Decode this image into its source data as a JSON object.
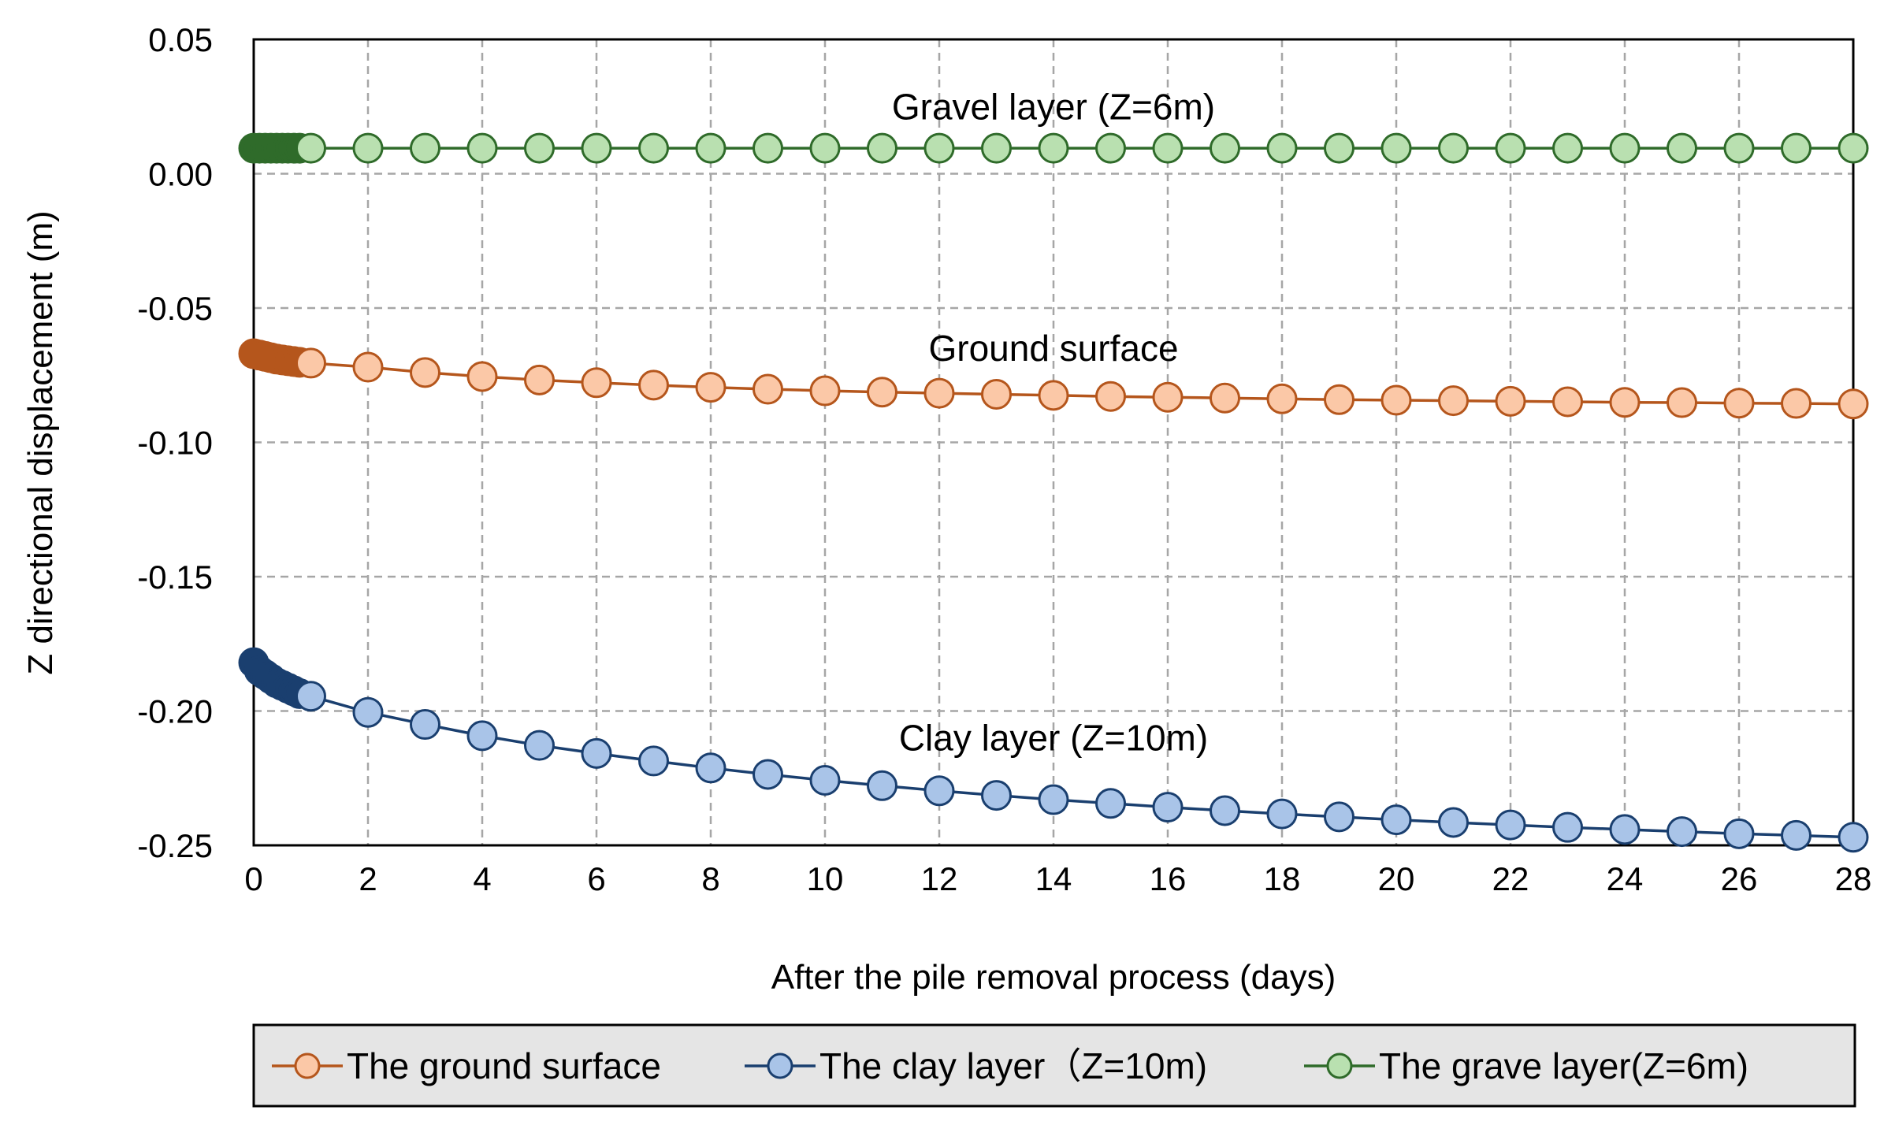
{
  "chart_data": {
    "type": "line",
    "title": "",
    "xlabel": "After the pile removal process (days)",
    "ylabel": "Z directional displacement (m)",
    "xlim": [
      0,
      28
    ],
    "ylim": [
      -0.25,
      0.05
    ],
    "xticks": [
      0,
      2,
      4,
      6,
      8,
      10,
      12,
      14,
      16,
      18,
      20,
      22,
      24,
      26,
      28
    ],
    "xtick_labels": [
      "0",
      "2",
      "4",
      "6",
      "8",
      "10",
      "12",
      "14",
      "16",
      "18",
      "20",
      "22",
      "24",
      "26",
      "28"
    ],
    "yticks": [
      0.05,
      0.0,
      -0.05,
      -0.1,
      -0.15,
      -0.2,
      -0.25
    ],
    "ytick_labels": [
      "0.05",
      "0.00",
      "-0.05",
      "-0.10",
      "-0.15",
      "-0.20",
      "-0.25"
    ],
    "grid": true,
    "legend_position": "bottom",
    "x": [
      0,
      0.1,
      0.2,
      0.3,
      0.4,
      0.5,
      0.6,
      0.7,
      0.8,
      1,
      2,
      3,
      4,
      5,
      6,
      7,
      8,
      9,
      10,
      11,
      12,
      13,
      14,
      15,
      16,
      17,
      18,
      19,
      20,
      21,
      22,
      23,
      24,
      25,
      26,
      27,
      28
    ],
    "series": [
      {
        "name": "The ground surface",
        "line_color": "#b5561c",
        "marker_fill": "#fbc8a7",
        "early_marker_fill": "#b5561c",
        "values": [
          -0.067,
          -0.0675,
          -0.068,
          -0.0685,
          -0.069,
          -0.0693,
          -0.0696,
          -0.0699,
          -0.0702,
          -0.0705,
          -0.072,
          -0.074,
          -0.0755,
          -0.0768,
          -0.0778,
          -0.0787,
          -0.0795,
          -0.0802,
          -0.0808,
          -0.0813,
          -0.0817,
          -0.0821,
          -0.0825,
          -0.0829,
          -0.0832,
          -0.0835,
          -0.0838,
          -0.0841,
          -0.0843,
          -0.0845,
          -0.0847,
          -0.0849,
          -0.0851,
          -0.0852,
          -0.0854,
          -0.0855,
          -0.0857
        ]
      },
      {
        "name": "The clay layer（Z=10m)",
        "line_color": "#1a3f6f",
        "marker_fill": "#a9c4e8",
        "early_marker_fill": "#1a3f6f",
        "values": [
          -0.182,
          -0.185,
          -0.1865,
          -0.188,
          -0.1895,
          -0.1905,
          -0.1915,
          -0.1925,
          -0.1935,
          -0.1945,
          -0.2005,
          -0.205,
          -0.2092,
          -0.2128,
          -0.2158,
          -0.2186,
          -0.2212,
          -0.2236,
          -0.2258,
          -0.2278,
          -0.2297,
          -0.2314,
          -0.233,
          -0.2344,
          -0.2358,
          -0.2371,
          -0.2383,
          -0.2394,
          -0.2405,
          -0.2415,
          -0.2424,
          -0.2433,
          -0.2441,
          -0.2449,
          -0.2457,
          -0.2463,
          -0.247
        ]
      },
      {
        "name": "The grave layer(Z=6m)",
        "line_color": "#2f6b2a",
        "marker_fill": "#b9e0b0",
        "early_marker_fill": "#2f6b2a",
        "values": [
          0.0095,
          0.0095,
          0.0095,
          0.0095,
          0.0095,
          0.0095,
          0.0095,
          0.0095,
          0.0095,
          0.0095,
          0.0095,
          0.0095,
          0.0095,
          0.0095,
          0.0095,
          0.0095,
          0.0095,
          0.0095,
          0.0095,
          0.0095,
          0.0095,
          0.0095,
          0.0095,
          0.0095,
          0.0095,
          0.0095,
          0.0095,
          0.0095,
          0.0095,
          0.0095,
          0.0095,
          0.0095,
          0.0095,
          0.0095,
          0.0095,
          0.0095,
          0.0095
        ]
      }
    ],
    "annotations": [
      {
        "text": "Gravel layer (Z=6m)",
        "x": 14,
        "y": 0.025
      },
      {
        "text": "Ground surface",
        "x": 14,
        "y": -0.065
      },
      {
        "text": "Clay layer (Z=10m)",
        "x": 14,
        "y": -0.21
      }
    ]
  }
}
